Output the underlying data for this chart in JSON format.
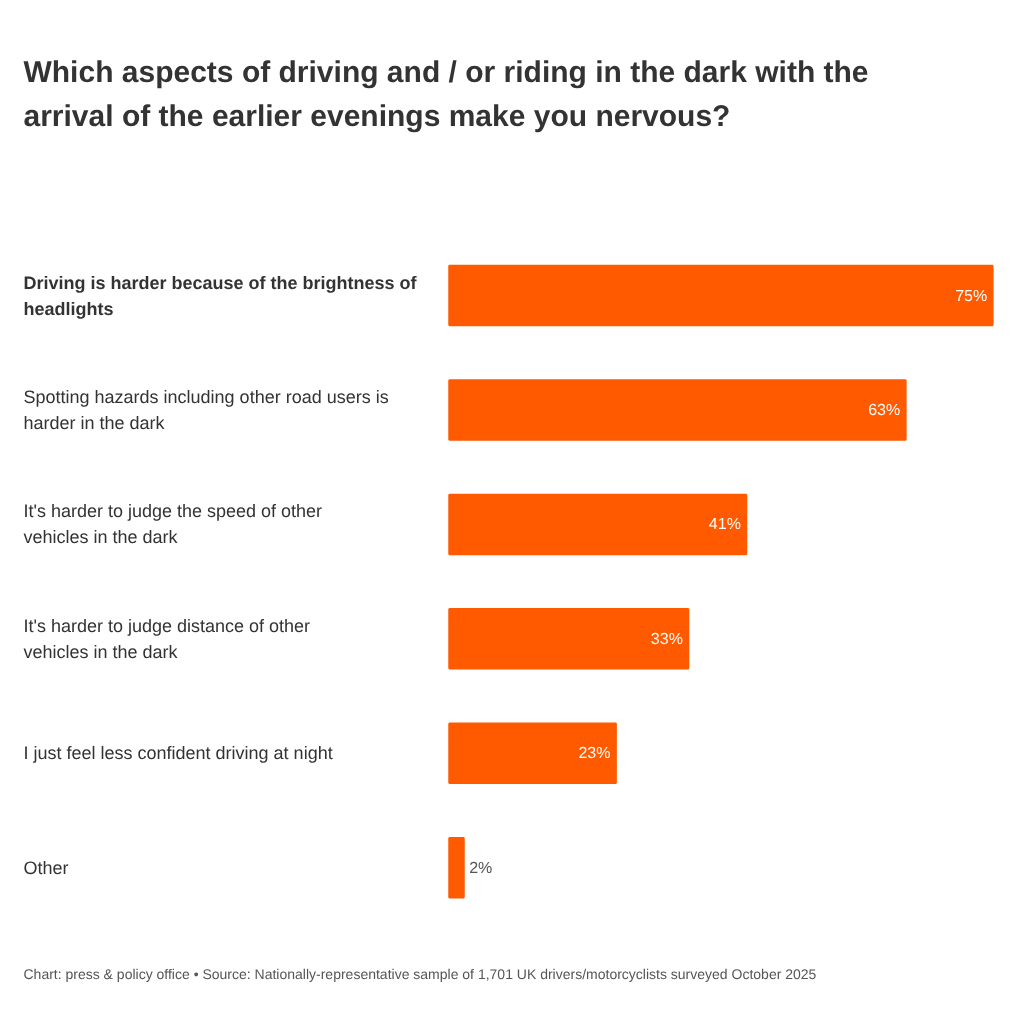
{
  "chart_data": {
    "type": "bar",
    "orientation": "horizontal",
    "title": "Which aspects of driving and / or riding in the dark with the arrival of the earlier evenings make you nervous?",
    "categories": [
      "Driving is harder because of the brightness of headlights",
      "Spotting hazards including other road users is harder in the dark",
      "It's harder to judge the speed of other vehicles in the dark",
      "It's harder to judge distance of other vehicles in the dark",
      "I just feel less confident driving at night",
      "Other"
    ],
    "values": [
      75,
      63,
      41,
      33,
      23,
      2
    ],
    "value_labels": [
      "75%",
      "63%",
      "41%",
      "33%",
      "23%",
      "2%"
    ],
    "color": "#ff5a00",
    "grid": false,
    "annotations": [
      "Chart: press & policy office • Source: Nationally-representative sample of 1,701 UK drivers/motorcyclists surveyed October 2025"
    ]
  }
}
